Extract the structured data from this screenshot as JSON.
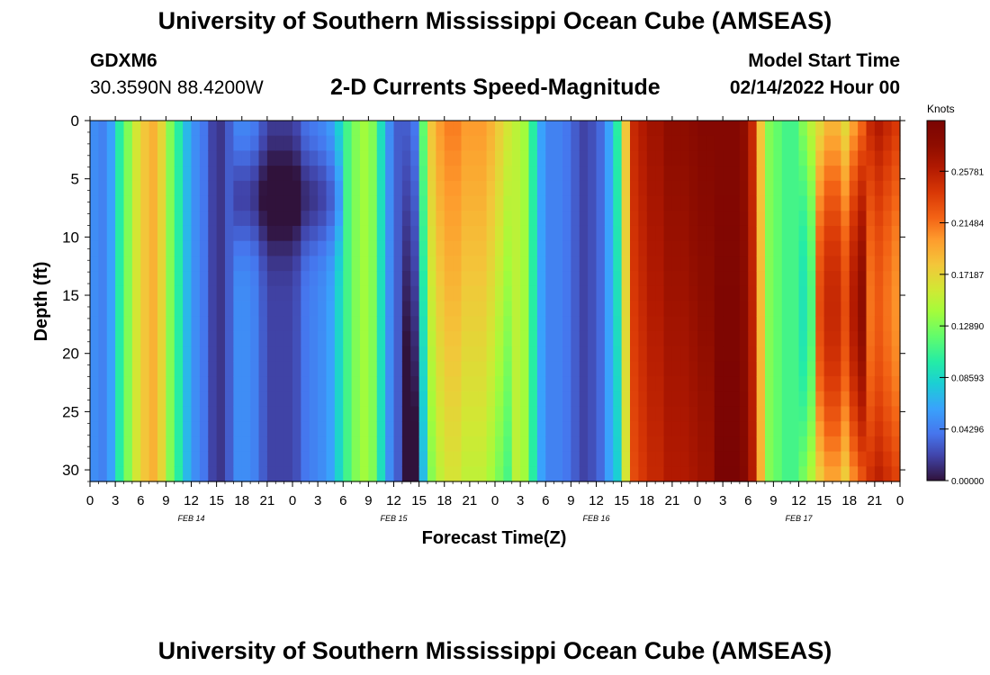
{
  "header": {
    "title": "University of Southern Mississippi Ocean Cube (AMSEAS)",
    "station": "GDXM6",
    "coordinates": "30.3590N  88.4200W",
    "subtitle": "2-D Currents Speed-Magnitude",
    "start_label": "Model Start Time",
    "start_value": "02/14/2022 Hour 00"
  },
  "footer": {
    "title": "University of Southern Mississippi Ocean Cube (AMSEAS)"
  },
  "chart_data": {
    "type": "heatmap",
    "title": "2-D Currents Speed-Magnitude",
    "xlabel": "Forecast Time(Z)",
    "ylabel": "Depth (ft)",
    "x_tick_labels": [
      "0",
      "3",
      "6",
      "9",
      "12",
      "15",
      "18",
      "21",
      "0",
      "3",
      "6",
      "9",
      "12",
      "15",
      "18",
      "21",
      "0",
      "3",
      "6",
      "9",
      "12",
      "15",
      "18",
      "21",
      "0",
      "3",
      "6",
      "9",
      "12",
      "15",
      "18",
      "21",
      "0"
    ],
    "x_range_hours": [
      0,
      96
    ],
    "date_labels": [
      {
        "hour": 12,
        "label": "FEB 14"
      },
      {
        "hour": 36,
        "label": "FEB 15"
      },
      {
        "hour": 60,
        "label": "FEB 16"
      },
      {
        "hour": 84,
        "label": "FEB 17"
      }
    ],
    "y_range_ft": [
      0,
      31
    ],
    "y_ticks": [
      0,
      5,
      10,
      15,
      20,
      25,
      30
    ],
    "y_tick_labels": [
      "0",
      "5",
      "10",
      "15",
      "20",
      "25",
      "30"
    ],
    "colorbar": {
      "label": "Knots",
      "range": [
        0,
        0.3
      ],
      "tick_values": [
        0.0,
        0.04296,
        0.08593,
        0.1289,
        0.17187,
        0.21484,
        0.25781
      ],
      "tick_labels": [
        "0.00000",
        "0.04296",
        "0.08593",
        "0.12890",
        "0.17187",
        "0.21484",
        "0.25781"
      ],
      "stops": [
        {
          "v": 0.0,
          "color": "#30123b"
        },
        {
          "v": 0.07,
          "color": "#4145ab"
        },
        {
          "v": 0.13,
          "color": "#4675ed"
        },
        {
          "v": 0.2,
          "color": "#39a2fc"
        },
        {
          "v": 0.27,
          "color": "#1bcfd4"
        },
        {
          "v": 0.33,
          "color": "#24eca6"
        },
        {
          "v": 0.4,
          "color": "#61fc6c"
        },
        {
          "v": 0.47,
          "color": "#a4fc3b"
        },
        {
          "v": 0.53,
          "color": "#d1e834"
        },
        {
          "v": 0.6,
          "color": "#f3c63a"
        },
        {
          "v": 0.67,
          "color": "#fe9b2d"
        },
        {
          "v": 0.73,
          "color": "#f36315"
        },
        {
          "v": 0.8,
          "color": "#d93806"
        },
        {
          "v": 0.87,
          "color": "#b11901"
        },
        {
          "v": 0.93,
          "color": "#8f0d00"
        },
        {
          "v": 1.0,
          "color": "#7a0403"
        }
      ]
    },
    "surface_speed_knots": {
      "hours": [
        0,
        1,
        2,
        3,
        4,
        5,
        6,
        7,
        8,
        9,
        10,
        11,
        12,
        13,
        14,
        15,
        16,
        17,
        18,
        19,
        20,
        21,
        22,
        23,
        24,
        25,
        26,
        27,
        28,
        29,
        30,
        31,
        32,
        33,
        34,
        35,
        36,
        37,
        38,
        39,
        40,
        41,
        42,
        43,
        44,
        45,
        46,
        47,
        48,
        49,
        50,
        51,
        52,
        53,
        54,
        55,
        56,
        57,
        58,
        59,
        60,
        61,
        62,
        63,
        64,
        65,
        66,
        67,
        68,
        69,
        70,
        71,
        72,
        73,
        74,
        75,
        76,
        77,
        78,
        79,
        80,
        81,
        82,
        83,
        84,
        85,
        86,
        87,
        88,
        89,
        90,
        91,
        92,
        93,
        94,
        95,
        96
      ],
      "values": [
        0.05,
        0.045,
        0.06,
        0.1,
        0.13,
        0.16,
        0.18,
        0.19,
        0.17,
        0.13,
        0.1,
        0.07,
        0.05,
        0.04,
        0.02,
        0.015,
        0.03,
        0.05,
        0.05,
        0.045,
        0.03,
        0.02,
        0.02,
        0.02,
        0.025,
        0.04,
        0.045,
        0.05,
        0.06,
        0.085,
        0.11,
        0.13,
        0.14,
        0.13,
        0.09,
        0.05,
        0.03,
        0.03,
        0.04,
        0.12,
        0.18,
        0.2,
        0.21,
        0.21,
        0.2,
        0.2,
        0.2,
        0.19,
        0.175,
        0.16,
        0.15,
        0.14,
        0.1,
        0.06,
        0.045,
        0.045,
        0.04,
        0.03,
        0.02,
        0.025,
        0.035,
        0.06,
        0.1,
        0.18,
        0.25,
        0.26,
        0.27,
        0.27,
        0.28,
        0.28,
        0.28,
        0.285,
        0.29,
        0.29,
        0.29,
        0.29,
        0.29,
        0.28,
        0.25,
        0.18,
        0.13,
        0.12,
        0.11,
        0.11,
        0.13,
        0.15,
        0.17,
        0.19,
        0.19,
        0.17,
        0.2,
        0.22,
        0.25,
        0.26,
        0.25,
        0.24,
        0.24
      ]
    }
  }
}
